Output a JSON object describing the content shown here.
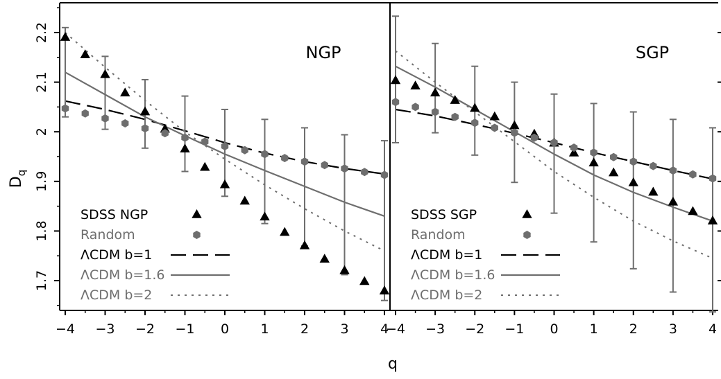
{
  "figure": {
    "xlabel": "q",
    "ylabel": "D",
    "ylabel_sub": "q"
  },
  "chart_data": [
    {
      "type": "scatter",
      "panel_label": "NGP",
      "xlim": [
        -4,
        4
      ],
      "ylim": [
        1.64,
        2.26
      ],
      "xticks": [
        -4,
        -3,
        -2,
        -1,
        0,
        1,
        2,
        3,
        4
      ],
      "yticks": [
        1.7,
        1.8,
        1.9,
        2,
        2.1,
        2.2
      ],
      "grid": false,
      "legend_position": "bottom-left",
      "series": [
        {
          "name": "SDSS NGP",
          "kind": "points",
          "marker": "triangle",
          "color": "#000000",
          "points": [
            [
              -4,
              2.19
            ],
            [
              -3.5,
              2.155
            ],
            [
              -3,
              2.115
            ],
            [
              -2.5,
              2.078
            ],
            [
              -2,
              2.04
            ],
            [
              -1.5,
              2.005
            ],
            [
              -1,
              1.965
            ],
            [
              -0.5,
              1.928
            ],
            [
              0,
              1.893
            ],
            [
              0.5,
              1.86
            ],
            [
              1,
              1.828
            ],
            [
              1.5,
              1.797
            ],
            [
              2,
              1.77
            ],
            [
              2.5,
              1.743
            ],
            [
              3,
              1.72
            ],
            [
              3.5,
              1.698
            ],
            [
              4,
              1.679
            ]
          ]
        },
        {
          "name": "Random",
          "kind": "points",
          "marker": "hexagon",
          "color": "#6e6e6e",
          "points": [
            [
              -4,
              2.047
            ],
            [
              -3.5,
              2.037
            ],
            [
              -3,
              2.027
            ],
            [
              -2.5,
              2.017
            ],
            [
              -2,
              2.007
            ],
            [
              -1.5,
              1.997
            ],
            [
              -1,
              1.988
            ],
            [
              -0.5,
              1.98
            ],
            [
              0,
              1.971
            ],
            [
              0.5,
              1.963
            ],
            [
              1,
              1.955
            ],
            [
              1.5,
              1.947
            ],
            [
              2,
              1.94
            ],
            [
              2.5,
              1.933
            ],
            [
              3,
              1.926
            ],
            [
              3.5,
              1.919
            ],
            [
              4,
              1.913
            ]
          ]
        },
        {
          "name": "ΛCDM b=1",
          "kind": "line",
          "style": "dashed",
          "color": "#000000",
          "points": [
            [
              -4,
              2.062
            ],
            [
              -3,
              2.045
            ],
            [
              -2,
              2.025
            ],
            [
              -1,
              2.002
            ],
            [
              0,
              1.978
            ],
            [
              1,
              1.957
            ],
            [
              2,
              1.94
            ],
            [
              3,
              1.926
            ],
            [
              4,
              1.915
            ]
          ],
          "errorbars": [
            [
              -4,
              2.03,
              2.21
            ],
            [
              -3,
              2.005,
              2.152
            ],
            [
              -2,
              1.967,
              2.105
            ],
            [
              -1,
              1.92,
              2.072
            ],
            [
              0,
              1.87,
              2.045
            ],
            [
              1,
              1.815,
              2.025
            ],
            [
              2,
              1.77,
              2.008
            ],
            [
              3,
              1.712,
              1.994
            ],
            [
              4,
              1.66,
              1.982
            ]
          ]
        },
        {
          "name": "ΛCDM b=1.6",
          "kind": "line",
          "style": "solid",
          "color": "#6e6e6e",
          "points": [
            [
              -4,
              2.12
            ],
            [
              -3,
              2.075
            ],
            [
              -2,
              2.03
            ],
            [
              -1,
              1.992
            ],
            [
              0,
              1.955
            ],
            [
              1,
              1.922
            ],
            [
              2,
              1.89
            ],
            [
              3,
              1.858
            ],
            [
              4,
              1.83
            ]
          ]
        },
        {
          "name": "ΛCDM b=2",
          "kind": "line",
          "style": "dotted",
          "color": "#6e6e6e",
          "points": [
            [
              -4,
              2.2
            ],
            [
              -3,
              2.13
            ],
            [
              -2,
              2.063
            ],
            [
              -1,
              2.0
            ],
            [
              0,
              1.945
            ],
            [
              1,
              1.893
            ],
            [
              2,
              1.845
            ],
            [
              3,
              1.8
            ],
            [
              4,
              1.76
            ]
          ]
        }
      ]
    },
    {
      "type": "scatter",
      "panel_label": "SGP",
      "xlim": [
        -4,
        4
      ],
      "ylim": [
        1.64,
        2.26
      ],
      "xticks": [
        -4,
        -3,
        -2,
        -1,
        0,
        1,
        2,
        3,
        4
      ],
      "yticks": [
        1.7,
        1.8,
        1.9,
        2,
        2.1,
        2.2
      ],
      "grid": false,
      "legend_position": "bottom-left",
      "series": [
        {
          "name": "SDSS SGP",
          "kind": "points",
          "marker": "triangle",
          "color": "#000000",
          "points": [
            [
              -4,
              2.103
            ],
            [
              -3.5,
              2.092
            ],
            [
              -3,
              2.078
            ],
            [
              -2.5,
              2.063
            ],
            [
              -2,
              2.047
            ],
            [
              -1.5,
              2.03
            ],
            [
              -1,
              2.012
            ],
            [
              -0.5,
              1.995
            ],
            [
              0,
              1.977
            ],
            [
              0.5,
              1.957
            ],
            [
              1,
              1.937
            ],
            [
              1.5,
              1.917
            ],
            [
              2,
              1.897
            ],
            [
              2.5,
              1.878
            ],
            [
              3,
              1.858
            ],
            [
              3.5,
              1.839
            ],
            [
              4,
              1.82
            ]
          ]
        },
        {
          "name": "Random",
          "kind": "points",
          "marker": "hexagon",
          "color": "#6e6e6e",
          "points": [
            [
              -4,
              2.06
            ],
            [
              -3.5,
              2.05
            ],
            [
              -3,
              2.04
            ],
            [
              -2.5,
              2.03
            ],
            [
              -2,
              2.018
            ],
            [
              -1.5,
              2.008
            ],
            [
              -1,
              1.998
            ],
            [
              -0.5,
              1.988
            ],
            [
              0,
              1.978
            ],
            [
              0.5,
              1.968
            ],
            [
              1,
              1.958
            ],
            [
              1.5,
              1.949
            ],
            [
              2,
              1.94
            ],
            [
              2.5,
              1.931
            ],
            [
              3,
              1.922
            ],
            [
              3.5,
              1.914
            ],
            [
              4,
              1.906
            ]
          ]
        },
        {
          "name": "ΛCDM b=1",
          "kind": "line",
          "style": "dashed",
          "color": "#000000",
          "points": [
            [
              -4,
              2.045
            ],
            [
              -3,
              2.032
            ],
            [
              -2,
              2.015
            ],
            [
              -1,
              1.997
            ],
            [
              0,
              1.978
            ],
            [
              1,
              1.958
            ],
            [
              2,
              1.94
            ],
            [
              3,
              1.922
            ],
            [
              4,
              1.905
            ]
          ],
          "errorbars": [
            [
              -4,
              1.978,
              2.233
            ],
            [
              -3,
              1.998,
              2.178
            ],
            [
              -2,
              1.953,
              2.132
            ],
            [
              -1,
              1.898,
              2.1
            ],
            [
              0,
              1.836,
              2.076
            ],
            [
              1,
              1.778,
              2.057
            ],
            [
              2,
              1.724,
              2.04
            ],
            [
              3,
              1.677,
              2.025
            ],
            [
              4,
              1.637,
              2.008
            ]
          ]
        },
        {
          "name": "ΛCDM b=1.6",
          "kind": "line",
          "style": "solid",
          "color": "#6e6e6e",
          "points": [
            [
              -4,
              2.132
            ],
            [
              -3,
              2.09
            ],
            [
              -2,
              2.045
            ],
            [
              -1,
              2.0
            ],
            [
              0,
              1.955
            ],
            [
              1,
              1.913
            ],
            [
              2,
              1.878
            ],
            [
              3,
              1.848
            ],
            [
              4,
              1.82
            ]
          ]
        },
        {
          "name": "ΛCDM b=2",
          "kind": "line",
          "style": "dotted",
          "color": "#6e6e6e",
          "points": [
            [
              -4,
              2.163
            ],
            [
              -3,
              2.1
            ],
            [
              -2,
              2.04
            ],
            [
              -1,
              1.98
            ],
            [
              0,
              1.92
            ],
            [
              1,
              1.868
            ],
            [
              2,
              1.82
            ],
            [
              3,
              1.78
            ],
            [
              4,
              1.745
            ]
          ]
        }
      ]
    }
  ]
}
